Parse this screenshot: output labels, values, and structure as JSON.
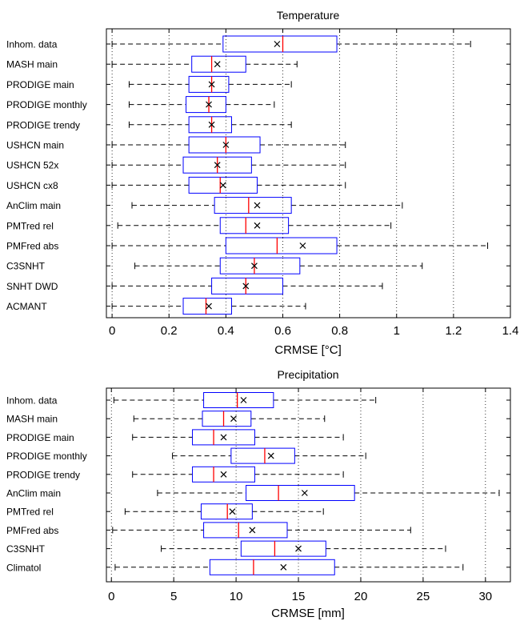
{
  "chart_data": [
    {
      "type": "box",
      "title": "Temperature",
      "xlabel": "CRMSE [°C]",
      "xlim": [
        -0.02,
        1.4
      ],
      "xticks": [
        0,
        0.2,
        0.4,
        0.6,
        0.8,
        1,
        1.2,
        1.4
      ],
      "xtick_labels": [
        "0",
        "0.2",
        "0.4",
        "0.6",
        "0.8",
        "1",
        "1.2",
        "1.4"
      ],
      "grid": "vertical dotted",
      "categories": [
        "Inhom. data",
        "MASH main",
        "PRODIGE main",
        "PRODIGE monthly",
        "PRODIGE trendy",
        "USHCN main",
        "USHCN 52x",
        "USHCN cx8",
        "AnClim main",
        "PMTred rel",
        "PMFred abs",
        "C3SNHT",
        "SNHT DWD",
        "ACMANT"
      ],
      "boxes": [
        {
          "whisker_low": 0.0,
          "q1": 0.39,
          "median": 0.6,
          "q3": 0.79,
          "whisker_high": 1.26,
          "mean": 0.58
        },
        {
          "whisker_low": 0.0,
          "q1": 0.28,
          "median": 0.35,
          "q3": 0.47,
          "whisker_high": 0.65,
          "mean": 0.37
        },
        {
          "whisker_low": 0.06,
          "q1": 0.27,
          "median": 0.35,
          "q3": 0.41,
          "whisker_high": 0.63,
          "mean": 0.35
        },
        {
          "whisker_low": 0.06,
          "q1": 0.26,
          "median": 0.34,
          "q3": 0.4,
          "whisker_high": 0.57,
          "mean": 0.34
        },
        {
          "whisker_low": 0.06,
          "q1": 0.27,
          "median": 0.35,
          "q3": 0.42,
          "whisker_high": 0.63,
          "mean": 0.35
        },
        {
          "whisker_low": 0.0,
          "q1": 0.27,
          "median": 0.4,
          "q3": 0.52,
          "whisker_high": 0.82,
          "mean": 0.4
        },
        {
          "whisker_low": 0.0,
          "q1": 0.25,
          "median": 0.37,
          "q3": 0.49,
          "whisker_high": 0.82,
          "mean": 0.37
        },
        {
          "whisker_low": 0.0,
          "q1": 0.27,
          "median": 0.38,
          "q3": 0.51,
          "whisker_high": 0.82,
          "mean": 0.39
        },
        {
          "whisker_low": 0.07,
          "q1": 0.36,
          "median": 0.48,
          "q3": 0.63,
          "whisker_high": 1.02,
          "mean": 0.51
        },
        {
          "whisker_low": 0.02,
          "q1": 0.38,
          "median": 0.47,
          "q3": 0.62,
          "whisker_high": 0.98,
          "mean": 0.51
        },
        {
          "whisker_low": 0.0,
          "q1": 0.4,
          "median": 0.58,
          "q3": 0.79,
          "whisker_high": 1.32,
          "mean": 0.67
        },
        {
          "whisker_low": 0.08,
          "q1": 0.38,
          "median": 0.5,
          "q3": 0.66,
          "whisker_high": 1.09,
          "mean": 0.5
        },
        {
          "whisker_low": 0.0,
          "q1": 0.35,
          "median": 0.47,
          "q3": 0.6,
          "whisker_high": 0.95,
          "mean": 0.47
        },
        {
          "whisker_low": 0.0,
          "q1": 0.25,
          "median": 0.33,
          "q3": 0.42,
          "whisker_high": 0.68,
          "mean": 0.34
        }
      ]
    },
    {
      "type": "box",
      "title": "Precipitation",
      "xlabel": "CRMSE [mm]",
      "xlim": [
        -0.4,
        32
      ],
      "xticks": [
        0,
        5,
        10,
        15,
        20,
        25,
        30
      ],
      "xtick_labels": [
        "0",
        "5",
        "10",
        "15",
        "20",
        "25",
        "30"
      ],
      "grid": "vertical dotted",
      "categories": [
        "Inhom. data",
        "MASH main",
        "PRODIGE main",
        "PRODIGE monthly",
        "PRODIGE trendy",
        "AnClim main",
        "PMTred rel",
        "PMFred abs",
        "C3SNHT",
        "Climatol"
      ],
      "boxes": [
        {
          "whisker_low": 0.2,
          "q1": 7.4,
          "median": 10.1,
          "q3": 13.0,
          "whisker_high": 21.2,
          "mean": 10.6
        },
        {
          "whisker_low": 1.8,
          "q1": 7.3,
          "median": 9.0,
          "q3": 11.2,
          "whisker_high": 17.1,
          "mean": 9.8
        },
        {
          "whisker_low": 1.7,
          "q1": 6.5,
          "median": 8.2,
          "q3": 11.5,
          "whisker_high": 18.6,
          "mean": 9.0
        },
        {
          "whisker_low": 4.9,
          "q1": 9.6,
          "median": 12.3,
          "q3": 14.7,
          "whisker_high": 20.4,
          "mean": 12.8
        },
        {
          "whisker_low": 1.7,
          "q1": 6.5,
          "median": 8.2,
          "q3": 11.5,
          "whisker_high": 18.6,
          "mean": 9.0
        },
        {
          "whisker_low": 3.7,
          "q1": 10.8,
          "median": 13.4,
          "q3": 19.5,
          "whisker_high": 31.1,
          "mean": 15.5
        },
        {
          "whisker_low": 1.1,
          "q1": 7.2,
          "median": 9.3,
          "q3": 11.3,
          "whisker_high": 17.0,
          "mean": 9.7
        },
        {
          "whisker_low": 0.1,
          "q1": 7.4,
          "median": 10.2,
          "q3": 14.1,
          "whisker_high": 24.0,
          "mean": 11.3
        },
        {
          "whisker_low": 4.0,
          "q1": 10.4,
          "median": 13.1,
          "q3": 17.2,
          "whisker_high": 26.8,
          "mean": 15.0
        },
        {
          "whisker_low": 0.3,
          "q1": 7.9,
          "median": 11.4,
          "q3": 17.9,
          "whisker_high": 28.2,
          "mean": 13.8
        }
      ]
    }
  ],
  "colors": {
    "box": "#0000ff",
    "median": "#ff0000",
    "whisker": "#000000",
    "mean_marker": "#000000",
    "grid": "#000000"
  }
}
